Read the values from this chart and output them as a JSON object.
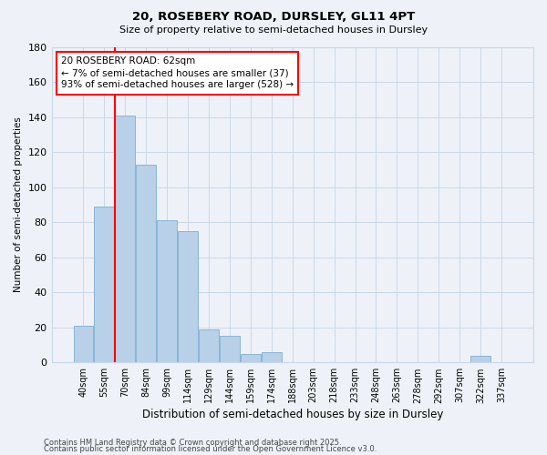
{
  "title1": "20, ROSEBERY ROAD, DURSLEY, GL11 4PT",
  "title2": "Size of property relative to semi-detached houses in Dursley",
  "xlabel": "Distribution of semi-detached houses by size in Dursley",
  "ylabel": "Number of semi-detached properties",
  "categories": [
    "40sqm",
    "55sqm",
    "70sqm",
    "84sqm",
    "99sqm",
    "114sqm",
    "129sqm",
    "144sqm",
    "159sqm",
    "174sqm",
    "188sqm",
    "203sqm",
    "218sqm",
    "233sqm",
    "248sqm",
    "263sqm",
    "278sqm",
    "292sqm",
    "307sqm",
    "322sqm",
    "337sqm"
  ],
  "values": [
    21,
    89,
    141,
    113,
    81,
    75,
    19,
    15,
    5,
    6,
    0,
    0,
    0,
    0,
    0,
    0,
    0,
    0,
    0,
    4,
    0
  ],
  "bar_color": "#b8d0e8",
  "bar_edge_color": "#7aafd4",
  "grid_color": "#c8d8e8",
  "background_color": "#eef2f8",
  "annotation_line1": "20 ROSEBERY ROAD: 62sqm",
  "annotation_line2": "← 7% of semi-detached houses are smaller (37)",
  "annotation_line3": "93% of semi-detached houses are larger (528) →",
  "red_line_x": 1.5,
  "ylim": [
    0,
    180
  ],
  "yticks": [
    0,
    20,
    40,
    60,
    80,
    100,
    120,
    140,
    160,
    180
  ],
  "footnote1": "Contains HM Land Registry data © Crown copyright and database right 2025.",
  "footnote2": "Contains public sector information licensed under the Open Government Licence v3.0."
}
